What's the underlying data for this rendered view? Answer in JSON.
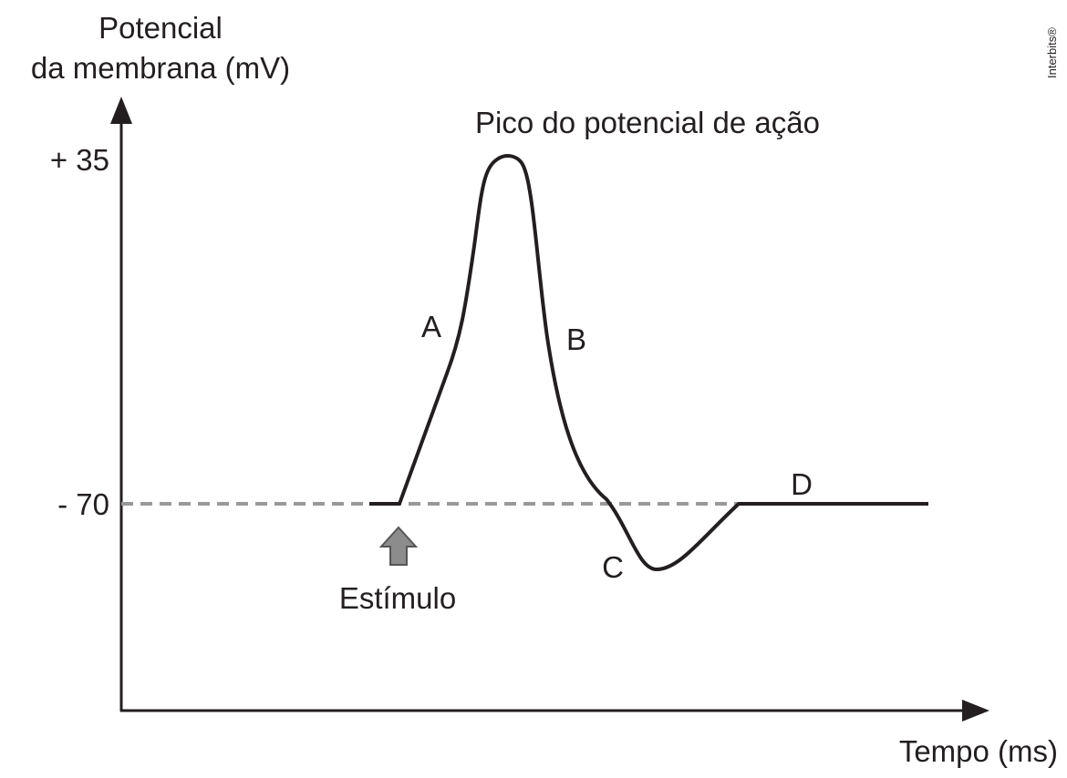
{
  "axes": {
    "y_label_lines": [
      "Potencial",
      "da membrana (mV)"
    ],
    "x_label": "Tempo (ms)",
    "y_ticks": [
      "+ 35",
      "- 70"
    ]
  },
  "labels": {
    "peak": "Pico do potencial de ação",
    "phases": [
      "A",
      "B",
      "C",
      "D"
    ],
    "stimulus": "Estímulo"
  },
  "credit": "Interbits®"
}
